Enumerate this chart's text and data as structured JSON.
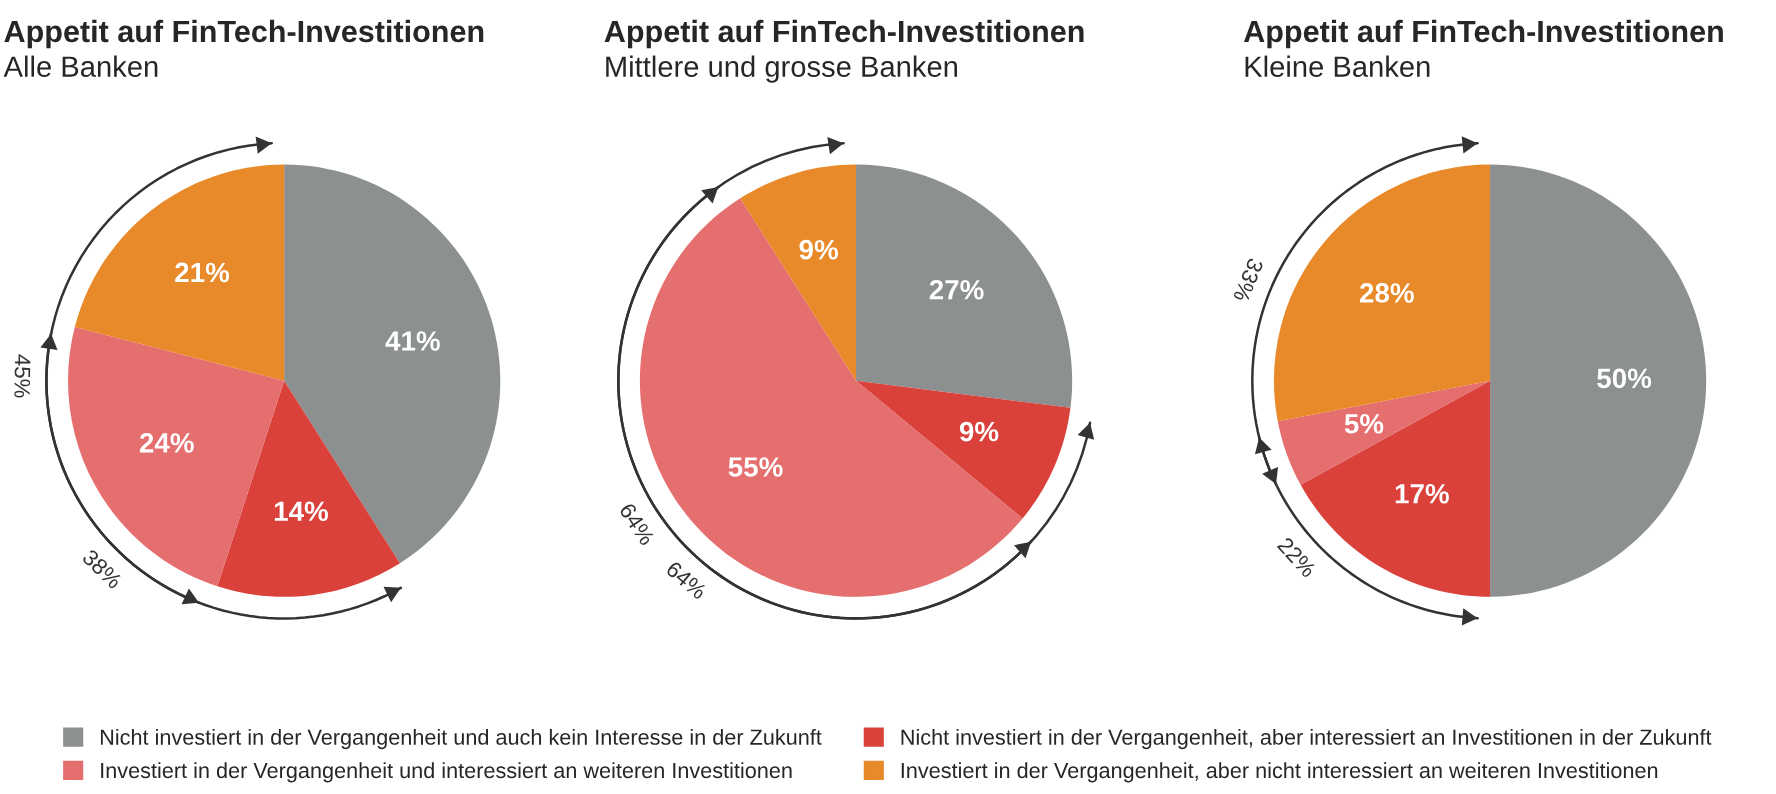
{
  "chart_data": [
    {
      "type": "pie",
      "title": "Appetit auf FinTech-Investitionen",
      "subtitle": "Alle Banken",
      "categories": [
        "Nicht investiert in der Vergangenheit und auch kein Interesse in der Zukunft",
        "Nicht investiert in der Vergangenheit, aber interessiert an Investitionen in der Zukunft",
        "Investiert in der Vergangenheit und interessiert an weiteren Investitionen",
        "Investiert in der Vergangenheit, aber nicht interessiert an weiteren Investitionen"
      ],
      "values": [
        41,
        14,
        24,
        21
      ],
      "value_labels": [
        "41%",
        "14%",
        "24%",
        "21%"
      ],
      "colors": [
        "#8c9091",
        "#d9413a",
        "#e56e6f",
        "#e8892a"
      ],
      "annotations": [
        "45%",
        "38%"
      ],
      "legend": "bottom"
    },
    {
      "type": "pie",
      "title": "Appetit auf FinTech-Investitionen",
      "subtitle": "Mittlere und grosse Banken",
      "categories": [
        null,
        null,
        null,
        null
      ],
      "values": [
        27,
        9,
        55,
        9
      ],
      "value_labels": [
        "27%",
        "9%",
        "55%",
        "9%"
      ],
      "colors": [
        "#8c9091",
        "#d9413a",
        "#e56e6f",
        "#e8892a"
      ],
      "annotations": [
        "64%",
        "64%"
      ]
    },
    {
      "type": "pie",
      "title": "Appetit auf FinTech-Investitionen",
      "subtitle": "Kleine Banken",
      "categories": [
        null,
        null,
        null,
        null
      ],
      "values": [
        50,
        17,
        5,
        28
      ],
      "value_labels": [
        "50%",
        "17%",
        "5%",
        "28%"
      ],
      "colors": [
        "#8c9091",
        "#d9413a",
        "#e56e6f",
        "#e8892a"
      ],
      "annotations": [
        "33%",
        "22%"
      ]
    }
  ]
}
